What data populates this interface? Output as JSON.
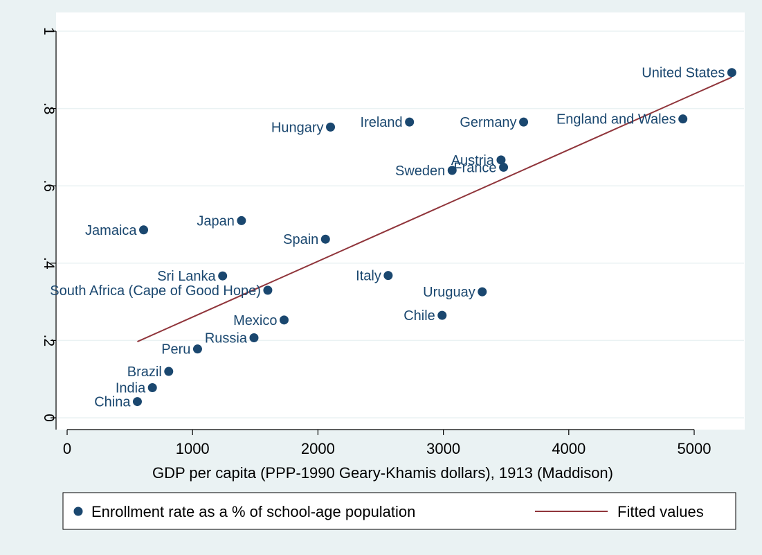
{
  "chart_data": {
    "type": "scatter",
    "xlabel": "GDP per capita (PPP-1990 Geary-Khamis dollars), 1913 (Maddison)",
    "ylabel": "",
    "xlim": [
      0,
      5300
    ],
    "ylim": [
      0,
      1
    ],
    "x_ticks": [
      0,
      1000,
      2000,
      3000,
      4000,
      5000
    ],
    "x_tick_labels": [
      "0",
      "1000",
      "2000",
      "3000",
      "4000",
      "5000"
    ],
    "y_ticks": [
      0,
      0.2,
      0.4,
      0.6,
      0.8,
      1
    ],
    "y_tick_labels": [
      "0",
      ".2",
      ".4",
      ".6",
      ".8",
      "1"
    ],
    "grid": "horizontal",
    "legend_position": "bottom",
    "colors": {
      "plot_background": "#ffffff",
      "outer_background": "#eaf2f3",
      "marker": "#1a476f",
      "label_text": "#1a476f",
      "fit_line": "#90353b",
      "grid": "#eaf2f3",
      "axis": "#000000"
    },
    "series": [
      {
        "name": "Enrollment rate as a % of school-age population",
        "type": "scatter",
        "points": [
          {
            "label": "United States",
            "x": 5300,
            "y": 0.893,
            "label_side": "left"
          },
          {
            "label": "England and Wales",
            "x": 4910,
            "y": 0.773,
            "label_side": "left"
          },
          {
            "label": "Germany",
            "x": 3640,
            "y": 0.765,
            "label_side": "left"
          },
          {
            "label": "Ireland",
            "x": 2730,
            "y": 0.765,
            "label_side": "left"
          },
          {
            "label": "Hungary",
            "x": 2100,
            "y": 0.752,
            "label_side": "left"
          },
          {
            "label": "Austria",
            "x": 3460,
            "y": 0.667,
            "label_side": "left"
          },
          {
            "label": "France",
            "x": 3480,
            "y": 0.648,
            "label_side": "left"
          },
          {
            "label": "Sweden",
            "x": 3070,
            "y": 0.64,
            "label_side": "left"
          },
          {
            "label": "Japan",
            "x": 1390,
            "y": 0.51,
            "label_side": "left"
          },
          {
            "label": "Jamaica",
            "x": 610,
            "y": 0.486,
            "label_side": "left"
          },
          {
            "label": "Spain",
            "x": 2060,
            "y": 0.462,
            "label_side": "left"
          },
          {
            "label": "Italy",
            "x": 2560,
            "y": 0.368,
            "label_side": "left"
          },
          {
            "label": "Sri Lanka",
            "x": 1240,
            "y": 0.367,
            "label_side": "left"
          },
          {
            "label": "South Africa (Cape of Good Hope)",
            "x": 1600,
            "y": 0.33,
            "label_side": "left"
          },
          {
            "label": "Uruguay",
            "x": 3310,
            "y": 0.326,
            "label_side": "left"
          },
          {
            "label": "Chile",
            "x": 2990,
            "y": 0.265,
            "label_side": "left"
          },
          {
            "label": "Mexico",
            "x": 1730,
            "y": 0.253,
            "label_side": "left"
          },
          {
            "label": "Russia",
            "x": 1490,
            "y": 0.207,
            "label_side": "left"
          },
          {
            "label": "Peru",
            "x": 1040,
            "y": 0.178,
            "label_side": "left"
          },
          {
            "label": "Brazil",
            "x": 810,
            "y": 0.12,
            "label_side": "left"
          },
          {
            "label": "India",
            "x": 680,
            "y": 0.078,
            "label_side": "left"
          },
          {
            "label": "China",
            "x": 560,
            "y": 0.042,
            "label_side": "left"
          }
        ]
      },
      {
        "name": "Fitted values",
        "type": "line",
        "points": [
          {
            "x": 560,
            "y": 0.197
          },
          {
            "x": 5300,
            "y": 0.881
          }
        ]
      }
    ],
    "legend": [
      {
        "label": "Enrollment rate as a % of school-age population",
        "kind": "marker"
      },
      {
        "label": "Fitted values",
        "kind": "line"
      }
    ]
  }
}
